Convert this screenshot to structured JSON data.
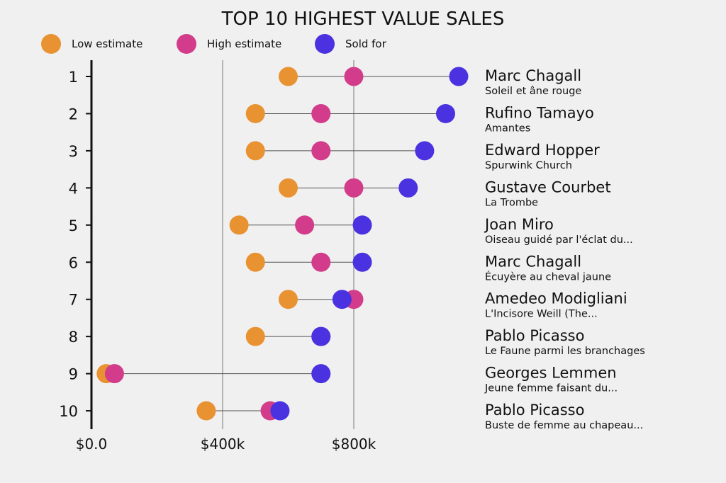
{
  "chart_data": {
    "type": "dot-range",
    "title": "TOP 10 HIGHEST VALUE SALES",
    "legend": {
      "placement": "top",
      "entries": [
        {
          "key": "low",
          "label": "Low estimate",
          "color": "#e89232"
        },
        {
          "key": "high",
          "label": "High estimate",
          "color": "#d23c8a"
        },
        {
          "key": "sold",
          "label": "Sold for",
          "color": "#4a32e0"
        }
      ]
    },
    "x_axis": {
      "min": 0,
      "max": 1200000,
      "ticks": [
        0,
        400000,
        800000
      ],
      "tick_labels": [
        "$0.0",
        "$400k",
        "$800k"
      ],
      "grid": true
    },
    "rows": [
      {
        "rank": "1",
        "artist": "Marc Chagall",
        "work": "Soleil et âne rouge",
        "low": 600000,
        "high": 800000,
        "sold": 1120000
      },
      {
        "rank": "2",
        "artist": "Rufino Tamayo",
        "work": "Amantes",
        "low": 500000,
        "high": 700000,
        "sold": 1080000
      },
      {
        "rank": "3",
        "artist": "Edward Hopper",
        "work": "Spurwink Church",
        "low": 500000,
        "high": 700000,
        "sold": 1016000
      },
      {
        "rank": "4",
        "artist": "Gustave Courbet",
        "work": "La Trombe",
        "low": 600000,
        "high": 800000,
        "sold": 966000
      },
      {
        "rank": "5",
        "artist": "Joan Miro",
        "work": "Oiseau guidé par l'éclat du...",
        "low": 450000,
        "high": 650000,
        "sold": 826000
      },
      {
        "rank": "6",
        "artist": "Marc Chagall",
        "work": "Écuyère au cheval jaune",
        "low": 500000,
        "high": 700000,
        "sold": 826000
      },
      {
        "rank": "7",
        "artist": "Amedeo Modigliani",
        "work": "L'Incisore Weill (The...",
        "low": 600000,
        "high": 800000,
        "sold": 764000
      },
      {
        "rank": "8",
        "artist": "Pablo Picasso",
        "work": "Le Faune parmi les branchages",
        "low": 500000,
        "high": 700000,
        "sold": 700000
      },
      {
        "rank": "9",
        "artist": "Georges Lemmen",
        "work": "Jeune femme faisant du...",
        "low": 45000,
        "high": 70000,
        "sold": 700000
      },
      {
        "rank": "10",
        "artist": "Pablo Picasso",
        "work": "Buste de femme au chapeau...",
        "low": 350000,
        "high": 545000,
        "sold": 575000
      }
    ]
  }
}
